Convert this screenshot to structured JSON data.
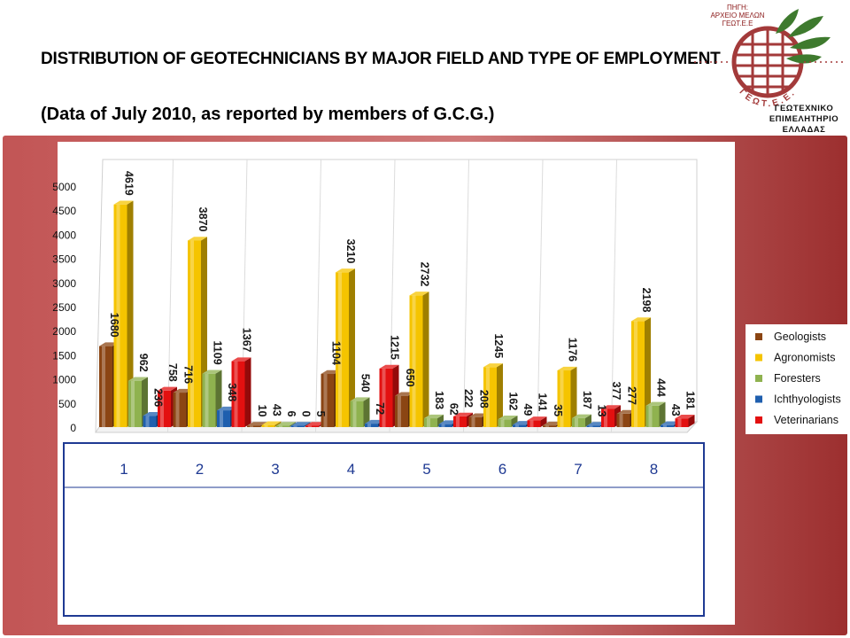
{
  "header": {
    "title": "DISTRIBUTION OF GEOTECHNICIANS BY MAJOR FIELD AND TYPE OF EMPLOYMENT",
    "subtitle": "(Data of July 2010, as reported by members of G.C.G.)"
  },
  "logo": {
    "source_lines": [
      "ΠΗΓΗ:",
      "ΑΡΧΕΙΟ ΜΕΛΩΝ",
      "ΓΕΩΤ.Ε.Ε"
    ],
    "org_lines": [
      "ΓΕΩΤΕΧΝΙΚΟ",
      "ΕΠΙΜΕΛΗΤΗΡΙΟ",
      "ΕΛΛΑΔΑΣ"
    ],
    "ring_text": "ΓΕΩΤ.Ε.Ε.",
    "emblem_color": "#a33a3a",
    "leaf_color": "#3e7a2e"
  },
  "chart_data": {
    "type": "bar",
    "categories": [
      "1",
      "2",
      "3",
      "4",
      "5",
      "6",
      "7",
      "8"
    ],
    "series": [
      {
        "name": "Geologists",
        "color": "#8b4513",
        "values": [
          1680,
          716,
          10,
          1104,
          650,
          208,
          35,
          277
        ]
      },
      {
        "name": "Agronomists",
        "color": "#f5c400",
        "values": [
          4619,
          3870,
          43,
          3210,
          2732,
          1245,
          1176,
          2198
        ]
      },
      {
        "name": "Foresters",
        "color": "#8fb24f",
        "values": [
          962,
          1109,
          6,
          540,
          183,
          162,
          187,
          444
        ]
      },
      {
        "name": "Ichthyologists",
        "color": "#1f5fae",
        "values": [
          236,
          348,
          0,
          72,
          62,
          49,
          13,
          43
        ]
      },
      {
        "name": "Veterinarians",
        "color": "#e31010",
        "values": [
          758,
          1367,
          5,
          1215,
          222,
          141,
          377,
          181
        ]
      }
    ],
    "ylim": [
      0,
      5000
    ],
    "yticks": [
      0,
      500,
      1000,
      1500,
      2000,
      2500,
      3000,
      3500,
      4000,
      4500,
      5000
    ],
    "grid": false,
    "legend": "right",
    "background_color": "#b04040"
  }
}
